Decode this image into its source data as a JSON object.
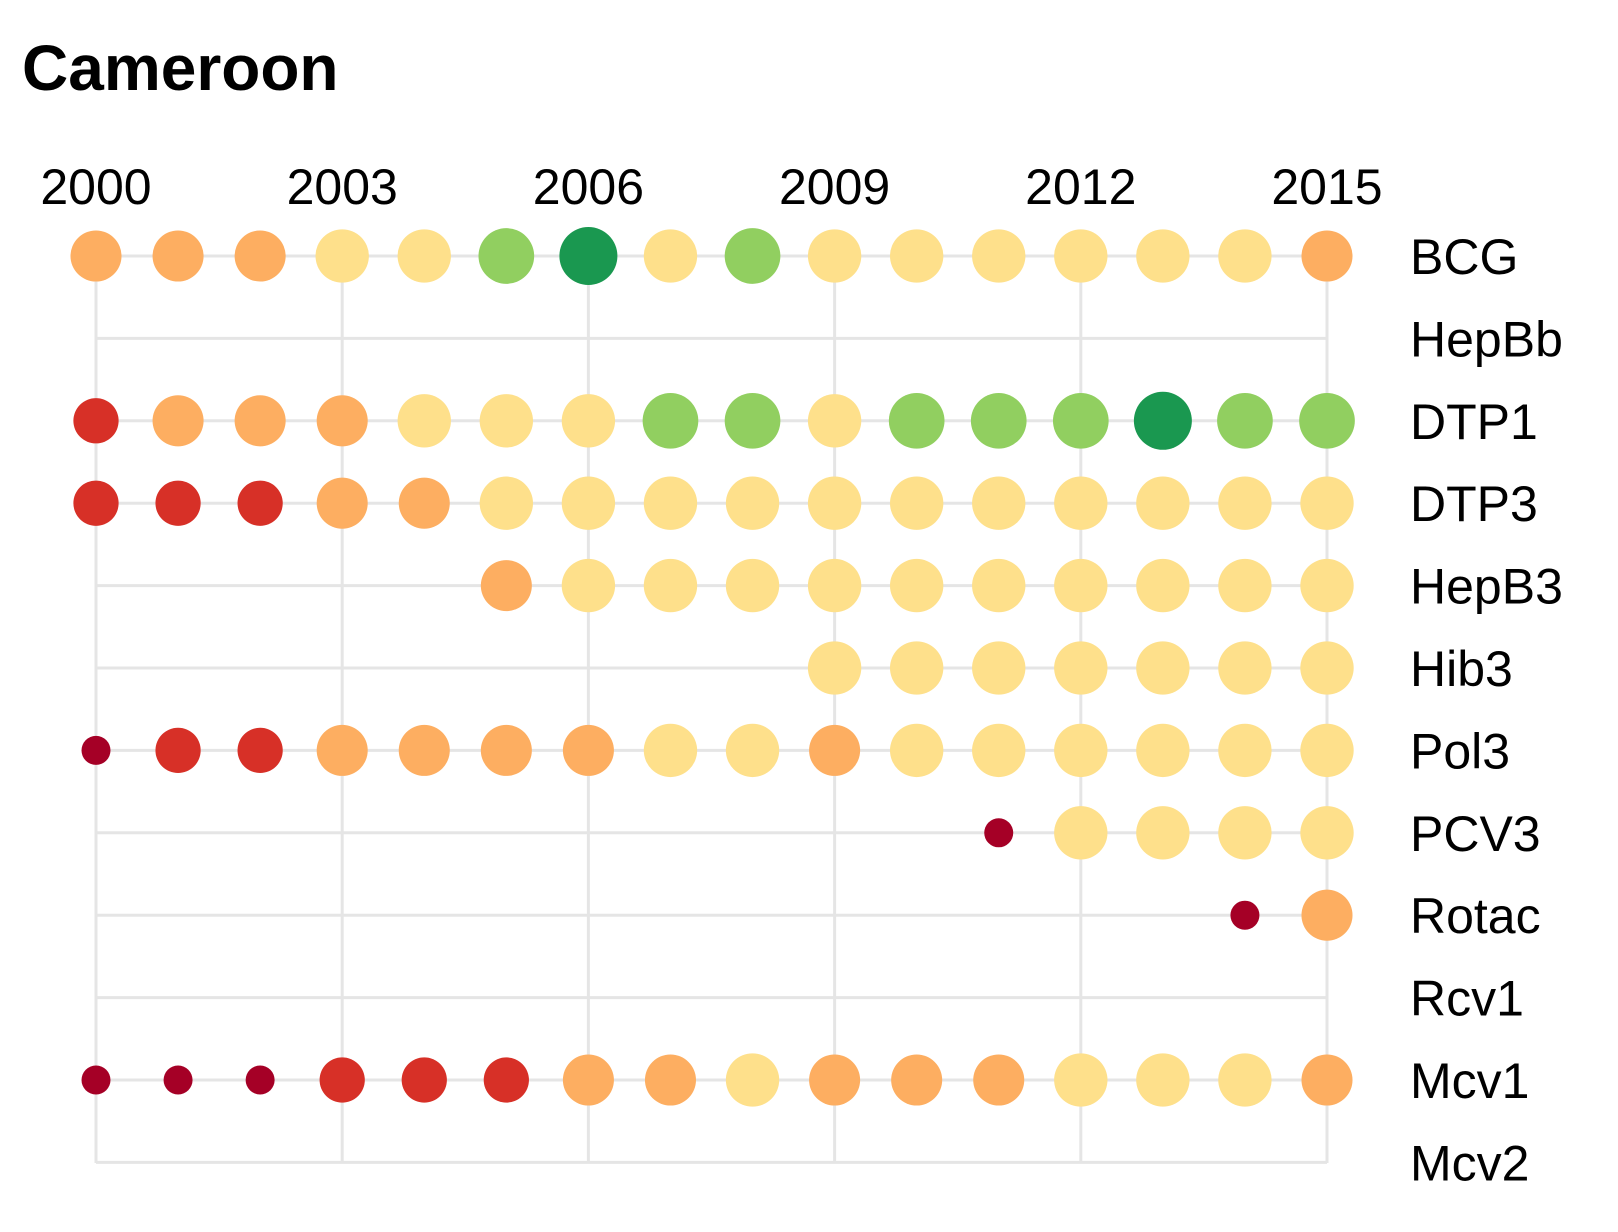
{
  "chart_data": {
    "type": "scatter",
    "title": "Cameroon",
    "x_ticks": [
      2000,
      2003,
      2006,
      2009,
      2012,
      2015
    ],
    "xlim": [
      2000,
      2015
    ],
    "years": [
      2000,
      2001,
      2002,
      2003,
      2004,
      2005,
      2006,
      2007,
      2008,
      2009,
      2010,
      2011,
      2012,
      2013,
      2014,
      2015
    ],
    "rows": [
      "BCG",
      "HepBb",
      "DTP1",
      "DTP3",
      "HepB3",
      "Hib3",
      "Pol3",
      "PCV3",
      "Rotac",
      "Rcv1",
      "Mcv1",
      "Mcv2"
    ],
    "color_scale": {
      "1": "#a50026",
      "2": "#d73027",
      "3": "#fdae61",
      "4": "#fee08b",
      "5": "#91cf60",
      "6": "#1a9850"
    },
    "size_scale": {
      "1": 0.5,
      "2": 0.78,
      "3": 0.88,
      "4": 0.92,
      "5": 0.96,
      "6": 1.0
    },
    "notes_on_levels": "Level codes index the color/size scales; no legend is printed in the original.",
    "series": [
      {
        "name": "BCG",
        "levels": [
          3,
          3,
          3,
          4,
          4,
          5,
          6,
          4,
          5,
          4,
          4,
          4,
          4,
          4,
          4,
          3
        ]
      },
      {
        "name": "HepBb",
        "levels": [
          null,
          null,
          null,
          null,
          null,
          null,
          null,
          null,
          null,
          null,
          null,
          null,
          null,
          null,
          null,
          null
        ]
      },
      {
        "name": "DTP1",
        "levels": [
          2,
          3,
          3,
          3,
          4,
          4,
          4,
          5,
          5,
          4,
          5,
          5,
          5,
          6,
          5,
          5
        ]
      },
      {
        "name": "DTP3",
        "levels": [
          2,
          2,
          2,
          3,
          3,
          4,
          4,
          4,
          4,
          4,
          4,
          4,
          4,
          4,
          4,
          4
        ]
      },
      {
        "name": "HepB3",
        "levels": [
          null,
          null,
          null,
          null,
          null,
          3,
          4,
          4,
          4,
          4,
          4,
          4,
          4,
          4,
          4,
          4
        ]
      },
      {
        "name": "Hib3",
        "levels": [
          null,
          null,
          null,
          null,
          null,
          null,
          null,
          null,
          null,
          4,
          4,
          4,
          4,
          4,
          4,
          4
        ]
      },
      {
        "name": "Pol3",
        "levels": [
          1,
          2,
          2,
          3,
          3,
          3,
          3,
          4,
          4,
          3,
          4,
          4,
          4,
          4,
          4,
          4
        ]
      },
      {
        "name": "PCV3",
        "levels": [
          null,
          null,
          null,
          null,
          null,
          null,
          null,
          null,
          null,
          null,
          null,
          1,
          4,
          4,
          4,
          4
        ]
      },
      {
        "name": "Rotac",
        "levels": [
          null,
          null,
          null,
          null,
          null,
          null,
          null,
          null,
          null,
          null,
          null,
          null,
          null,
          null,
          1,
          3
        ]
      },
      {
        "name": "Rcv1",
        "levels": [
          null,
          null,
          null,
          null,
          null,
          null,
          null,
          null,
          null,
          null,
          null,
          null,
          null,
          null,
          null,
          null
        ]
      },
      {
        "name": "Mcv1",
        "levels": [
          1,
          1,
          1,
          2,
          2,
          2,
          3,
          3,
          4,
          3,
          3,
          3,
          4,
          4,
          4,
          3
        ]
      },
      {
        "name": "Mcv2",
        "levels": [
          null,
          null,
          null,
          null,
          null,
          null,
          null,
          null,
          null,
          null,
          null,
          null,
          null,
          null,
          null,
          null
        ]
      }
    ]
  }
}
